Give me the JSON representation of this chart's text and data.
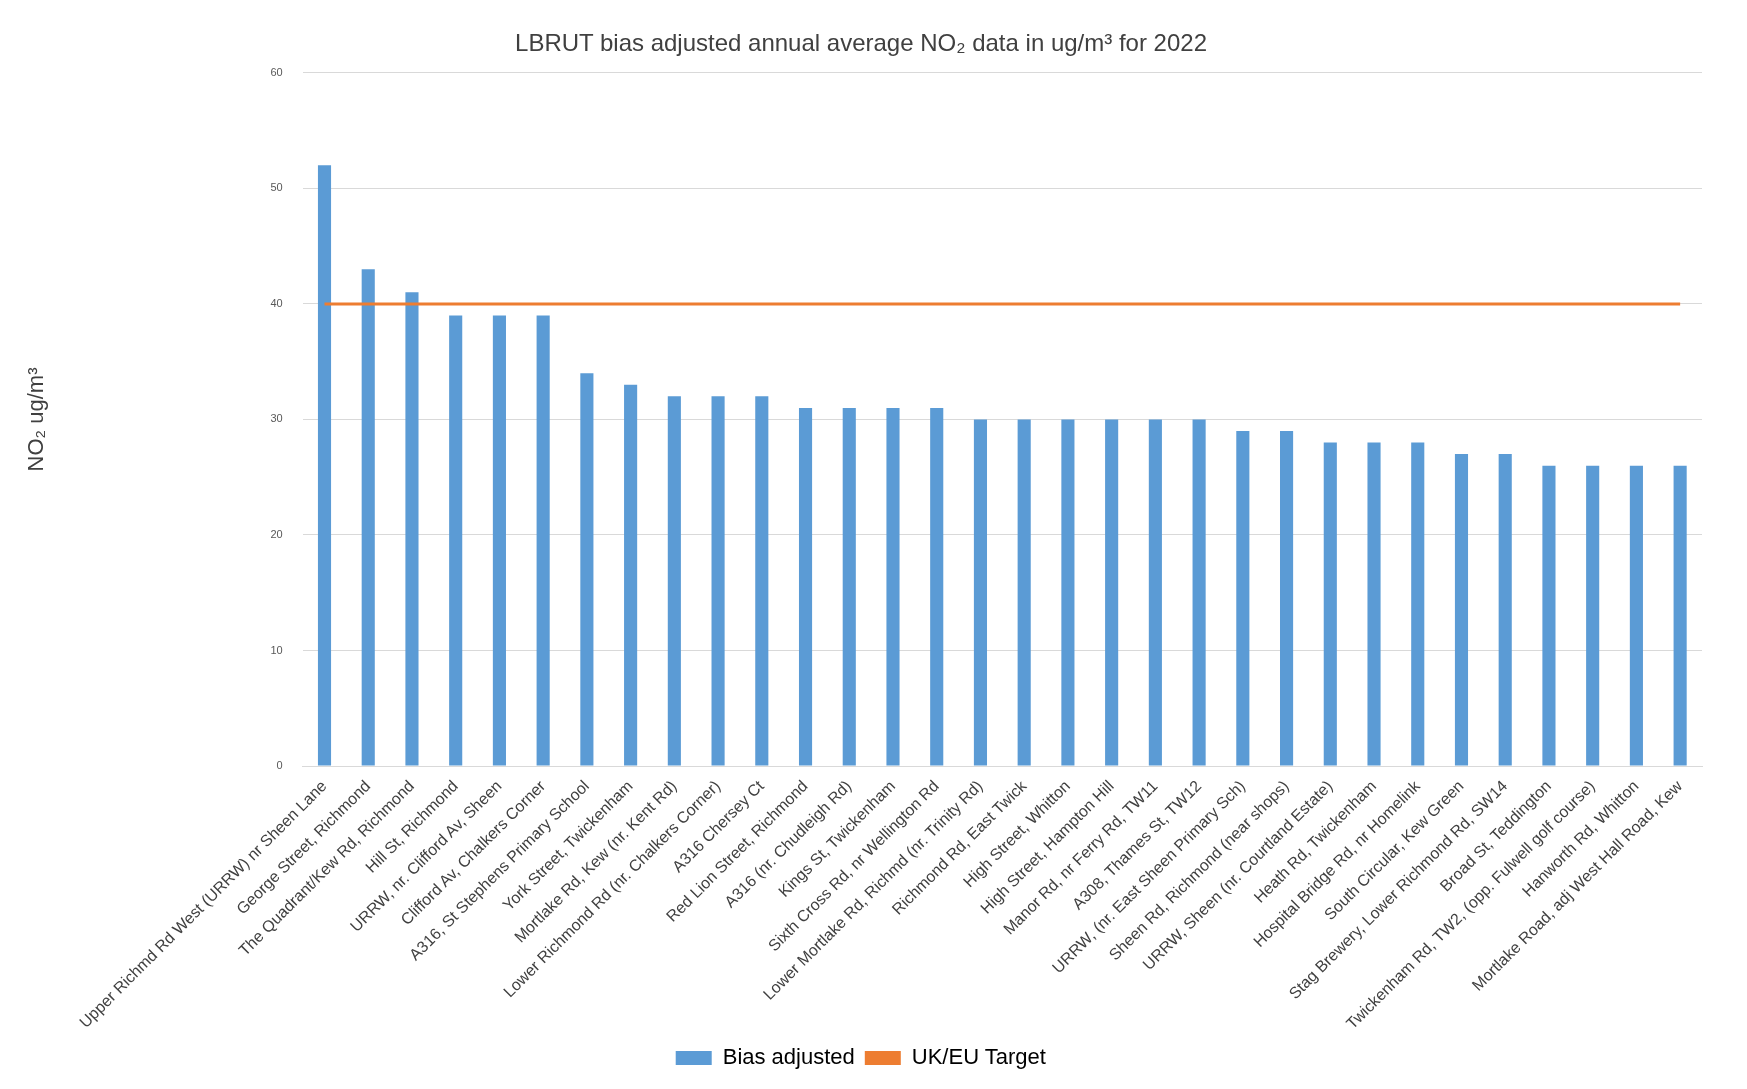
{
  "chart_data": {
    "type": "bar",
    "title": "LBRUT bias adjusted annual average NO₂ data in ug/m³ for 2022",
    "ylabel": "NO₂ ug/m³",
    "categories": [
      "Upper Richmd Rd West (URRW) nr Sheen Lane",
      "George Street, Richmond",
      "The Quadrant/Kew Rd, Richmond",
      "Hill St, Richmond",
      "URRW, nr. Clifford Av, Sheen",
      "Clifford Av, Chalkers Corner",
      "A316, St Stephens Primary School",
      "York Street, Twickenham",
      "Mortlake Rd, Kew (nr. Kent Rd)",
      "Lower Richmond Rd (nr. Chalkers Corner)",
      "A316 Chersey Ct",
      "Red Lion Street, Richmond",
      "A316 (nr. Chudleigh Rd)",
      "Kings St, Twickenham",
      "Sixth Cross Rd, nr Wellington Rd",
      "Lower Mortlake Rd, Richmd (nr. Trinity Rd)",
      "Richmond Rd, East Twick",
      "High Street, Whitton",
      "High Street, Hampton Hill",
      "Manor Rd, nr Ferry Rd, TW11",
      "A308, Thames St, TW12",
      "URRW, (nr. East Sheen Primary Sch)",
      "Sheen Rd, Richmond (near shops)",
      "URRW, Sheen (nr. Courtland Estate)",
      "Heath Rd, Twickenham",
      "Hospital Bridge Rd, nr Homelink",
      "South Circular, Kew Green",
      "Stag Brewery, Lower Richmond Rd, SW14",
      "Broad St, Teddington",
      "Twickenham Rd, TW2, (opp. Fulwell golf course)",
      "Hanworth Rd, Whitton",
      "Mortlake Road, adj West Hall Road, Kew"
    ],
    "series": [
      {
        "name": "Bias adjusted",
        "color": "#5b9bd5",
        "values": [
          52,
          43,
          41,
          39,
          39,
          39,
          34,
          33,
          32,
          32,
          32,
          31,
          31,
          31,
          31,
          30,
          30,
          30,
          30,
          30,
          30,
          29,
          29,
          28,
          28,
          28,
          27,
          27,
          26,
          26,
          26,
          26
        ]
      },
      {
        "name": "UK/EU Target",
        "type": "line",
        "color": "#ed7d31",
        "values": [
          40,
          40,
          40,
          40,
          40,
          40,
          40,
          40,
          40,
          40,
          40,
          40,
          40,
          40,
          40,
          40,
          40,
          40,
          40,
          40,
          40,
          40,
          40,
          40,
          40,
          40,
          40,
          40,
          40,
          40,
          40,
          40
        ]
      }
    ],
    "ylim": [
      0,
      60
    ],
    "yticks": [
      0,
      10,
      20,
      30,
      40,
      50,
      60
    ],
    "grid": "y",
    "legend": "bottom",
    "marker": "none"
  }
}
